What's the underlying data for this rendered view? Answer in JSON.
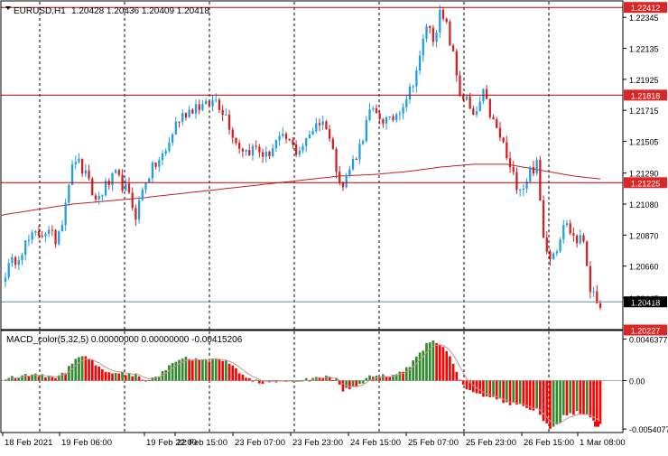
{
  "colors": {
    "background": "#ffffff",
    "frame": "#000000",
    "grid": "#000000",
    "bull_candle": "#1e9ee6",
    "bear_candle": "#d42020",
    "level_line": "#c80000",
    "level_box": "#dc2626",
    "bid_line": "#6c8aa0",
    "ma_line": "#c02020",
    "macd_pos_up": "#2e8b2e",
    "macd_pos_down": "#ff0000",
    "macd_neg_up": "#2e8b2e",
    "macd_neg_down": "#ff0000",
    "signal_line": "#d09090"
  },
  "header": {
    "symbol": "EURUSD,H1",
    "ohlc": "1.20428 1.20436 1.20409 1.20418"
  },
  "macd_header": "MACD_color(5,32,5) 0.00000000 0.00000000 -0.00415206",
  "chart_data": [
    {
      "type": "candlestick",
      "symbol": "EURUSD",
      "timeframe": "H1",
      "ylim": [
        1.2023,
        1.2245
      ],
      "y_tick_labels": [
        "1.22345",
        "1.22135",
        "1.21925",
        "1.21715",
        "1.21505",
        "1.21290",
        "1.21080",
        "1.20870",
        "1.20660",
        "1.20445"
      ],
      "y_tick_values": [
        1.22345,
        1.22135,
        1.21925,
        1.21715,
        1.21505,
        1.2129,
        1.2108,
        1.2087,
        1.2066,
        1.20445
      ],
      "levels": [
        {
          "label": "1.22412",
          "value": 1.22412
        },
        {
          "label": "1.21818",
          "value": 1.21818
        },
        {
          "label": "1.21225",
          "value": 1.21225
        },
        {
          "label": "1.20227",
          "value": 1.20227
        }
      ],
      "bid": {
        "label": "1.20418",
        "value": 1.20418
      },
      "x_tick_labels": [
        "18 Feb 2021",
        "19 Feb 06:00",
        "19 Feb 22:00",
        "22 Feb 15:00",
        "23 Feb 07:00",
        "23 Feb 23:00",
        "24 Feb 15:00",
        "25 Feb 07:00",
        "25 Feb 23:00",
        "26 Feb 15:00",
        "1 Mar 08:00"
      ],
      "close_path": [
        [
          0,
          1.2062
        ],
        [
          3,
          1.2071
        ],
        [
          6,
          1.2081
        ],
        [
          9,
          1.2087
        ],
        [
          12,
          1.209
        ],
        [
          15,
          1.2084
        ],
        [
          17,
          1.2098
        ],
        [
          19,
          1.2124
        ],
        [
          21,
          1.2139
        ],
        [
          24,
          1.2127
        ],
        [
          27,
          1.211
        ],
        [
          30,
          1.212
        ],
        [
          33,
          1.2127
        ],
        [
          36,
          1.2118
        ],
        [
          39,
          1.2101
        ],
        [
          42,
          1.2125
        ],
        [
          45,
          1.2135
        ],
        [
          48,
          1.2143
        ],
        [
          51,
          1.2163
        ],
        [
          54,
          1.217
        ],
        [
          57,
          1.2175
        ],
        [
          60,
          1.2174
        ],
        [
          63,
          1.2179
        ],
        [
          66,
          1.2168
        ],
        [
          69,
          1.215
        ],
        [
          72,
          1.2144
        ],
        [
          75,
          1.2146
        ],
        [
          78,
          1.214
        ],
        [
          81,
          1.215
        ],
        [
          84,
          1.2152
        ],
        [
          87,
          1.2144
        ],
        [
          90,
          1.215
        ],
        [
          93,
          1.2164
        ],
        [
          96,
          1.2162
        ],
        [
          99,
          1.2134
        ],
        [
          101,
          1.212
        ],
        [
          103,
          1.2132
        ],
        [
          106,
          1.2147
        ],
        [
          109,
          1.217
        ],
        [
          112,
          1.2167
        ],
        [
          115,
          1.2163
        ],
        [
          118,
          1.2173
        ],
        [
          121,
          1.2185
        ],
        [
          124,
          1.2206
        ],
        [
          126,
          1.223
        ],
        [
          128,
          1.2221
        ],
        [
          130,
          1.2236
        ],
        [
          132,
          1.2228
        ],
        [
          134,
          1.2208
        ],
        [
          136,
          1.2183
        ],
        [
          138,
          1.2178
        ],
        [
          140,
          1.2165
        ],
        [
          143,
          1.2182
        ],
        [
          146,
          1.2163
        ],
        [
          149,
          1.2148
        ],
        [
          151,
          1.2131
        ],
        [
          153,
          1.2122
        ],
        [
          155,
          1.212
        ],
        [
          157,
          1.2131
        ],
        [
          159,
          1.2134
        ],
        [
          161,
          1.2085
        ],
        [
          163,
          1.2074
        ],
        [
          165,
          1.2079
        ],
        [
          167,
          1.2096
        ],
        [
          169,
          1.209
        ],
        [
          171,
          1.2083
        ],
        [
          173,
          1.2084
        ],
        [
          175,
          1.2052
        ],
        [
          177,
          1.2037
        ],
        [
          178,
          1.2042
        ]
      ],
      "ma_path": [
        [
          0,
          1.2101
        ],
        [
          20,
          1.2108
        ],
        [
          40,
          1.2112
        ],
        [
          60,
          1.2117
        ],
        [
          80,
          1.2122
        ],
        [
          100,
          1.2127
        ],
        [
          110,
          1.2128
        ],
        [
          120,
          1.213
        ],
        [
          130,
          1.2133
        ],
        [
          140,
          1.2135
        ],
        [
          150,
          1.2135
        ],
        [
          160,
          1.2131
        ],
        [
          170,
          1.2127
        ],
        [
          178,
          1.2125
        ]
      ]
    },
    {
      "type": "histogram",
      "name": "MACD_color(5,32,5)",
      "ylim": [
        -0.0058,
        0.0055
      ],
      "y_tick_labels": [
        "0.0046377",
        "0.00",
        "-0.0054077"
      ],
      "y_tick_values": [
        0.0046377,
        0.0,
        -0.0054077
      ],
      "macd_path": [
        [
          0,
          0.0003
        ],
        [
          5,
          0.0005
        ],
        [
          9,
          0.0007
        ],
        [
          12,
          0.0005
        ],
        [
          15,
          0.0004
        ],
        [
          18,
          0.001
        ],
        [
          21,
          0.0026
        ],
        [
          24,
          0.0028
        ],
        [
          27,
          0.0018
        ],
        [
          30,
          0.001
        ],
        [
          33,
          0.0009
        ],
        [
          36,
          0.0008
        ],
        [
          39,
          0.0006
        ],
        [
          42,
          -0.0002
        ],
        [
          45,
          0.0004
        ],
        [
          48,
          0.0012
        ],
        [
          51,
          0.0022
        ],
        [
          54,
          0.0025
        ],
        [
          57,
          0.0024
        ],
        [
          60,
          0.0023
        ],
        [
          63,
          0.0024
        ],
        [
          66,
          0.0021
        ],
        [
          69,
          0.0013
        ],
        [
          72,
          0.0002
        ],
        [
          75,
          -0.0001
        ],
        [
          78,
          -0.0002
        ],
        [
          81,
          -0.0001
        ],
        [
          84,
          -0.0001
        ],
        [
          87,
          -0.0002
        ],
        [
          90,
          0.0001
        ],
        [
          93,
          0.0003
        ],
        [
          96,
          0.0005
        ],
        [
          99,
          0.0001
        ],
        [
          101,
          -0.0012
        ],
        [
          103,
          -0.0008
        ],
        [
          106,
          -0.0004
        ],
        [
          109,
          0.0004
        ],
        [
          112,
          0.0006
        ],
        [
          115,
          0.0005
        ],
        [
          118,
          0.0008
        ],
        [
          121,
          0.0016
        ],
        [
          124,
          0.003
        ],
        [
          126,
          0.004
        ],
        [
          128,
          0.0044
        ],
        [
          130,
          0.0042
        ],
        [
          132,
          0.0034
        ],
        [
          134,
          0.0019
        ],
        [
          136,
          0.0002
        ],
        [
          138,
          -0.001
        ],
        [
          140,
          -0.0013
        ],
        [
          143,
          -0.0016
        ],
        [
          146,
          -0.0019
        ],
        [
          149,
          -0.0023
        ],
        [
          151,
          -0.0026
        ],
        [
          153,
          -0.0027
        ],
        [
          155,
          -0.0029
        ],
        [
          157,
          -0.0033
        ],
        [
          159,
          -0.003
        ],
        [
          161,
          -0.0047
        ],
        [
          163,
          -0.0052
        ],
        [
          165,
          -0.005
        ],
        [
          167,
          -0.004
        ],
        [
          169,
          -0.0038
        ],
        [
          171,
          -0.0035
        ],
        [
          173,
          -0.0036
        ],
        [
          175,
          -0.0043
        ],
        [
          177,
          -0.0049
        ],
        [
          178,
          -0.0048
        ]
      ]
    }
  ]
}
